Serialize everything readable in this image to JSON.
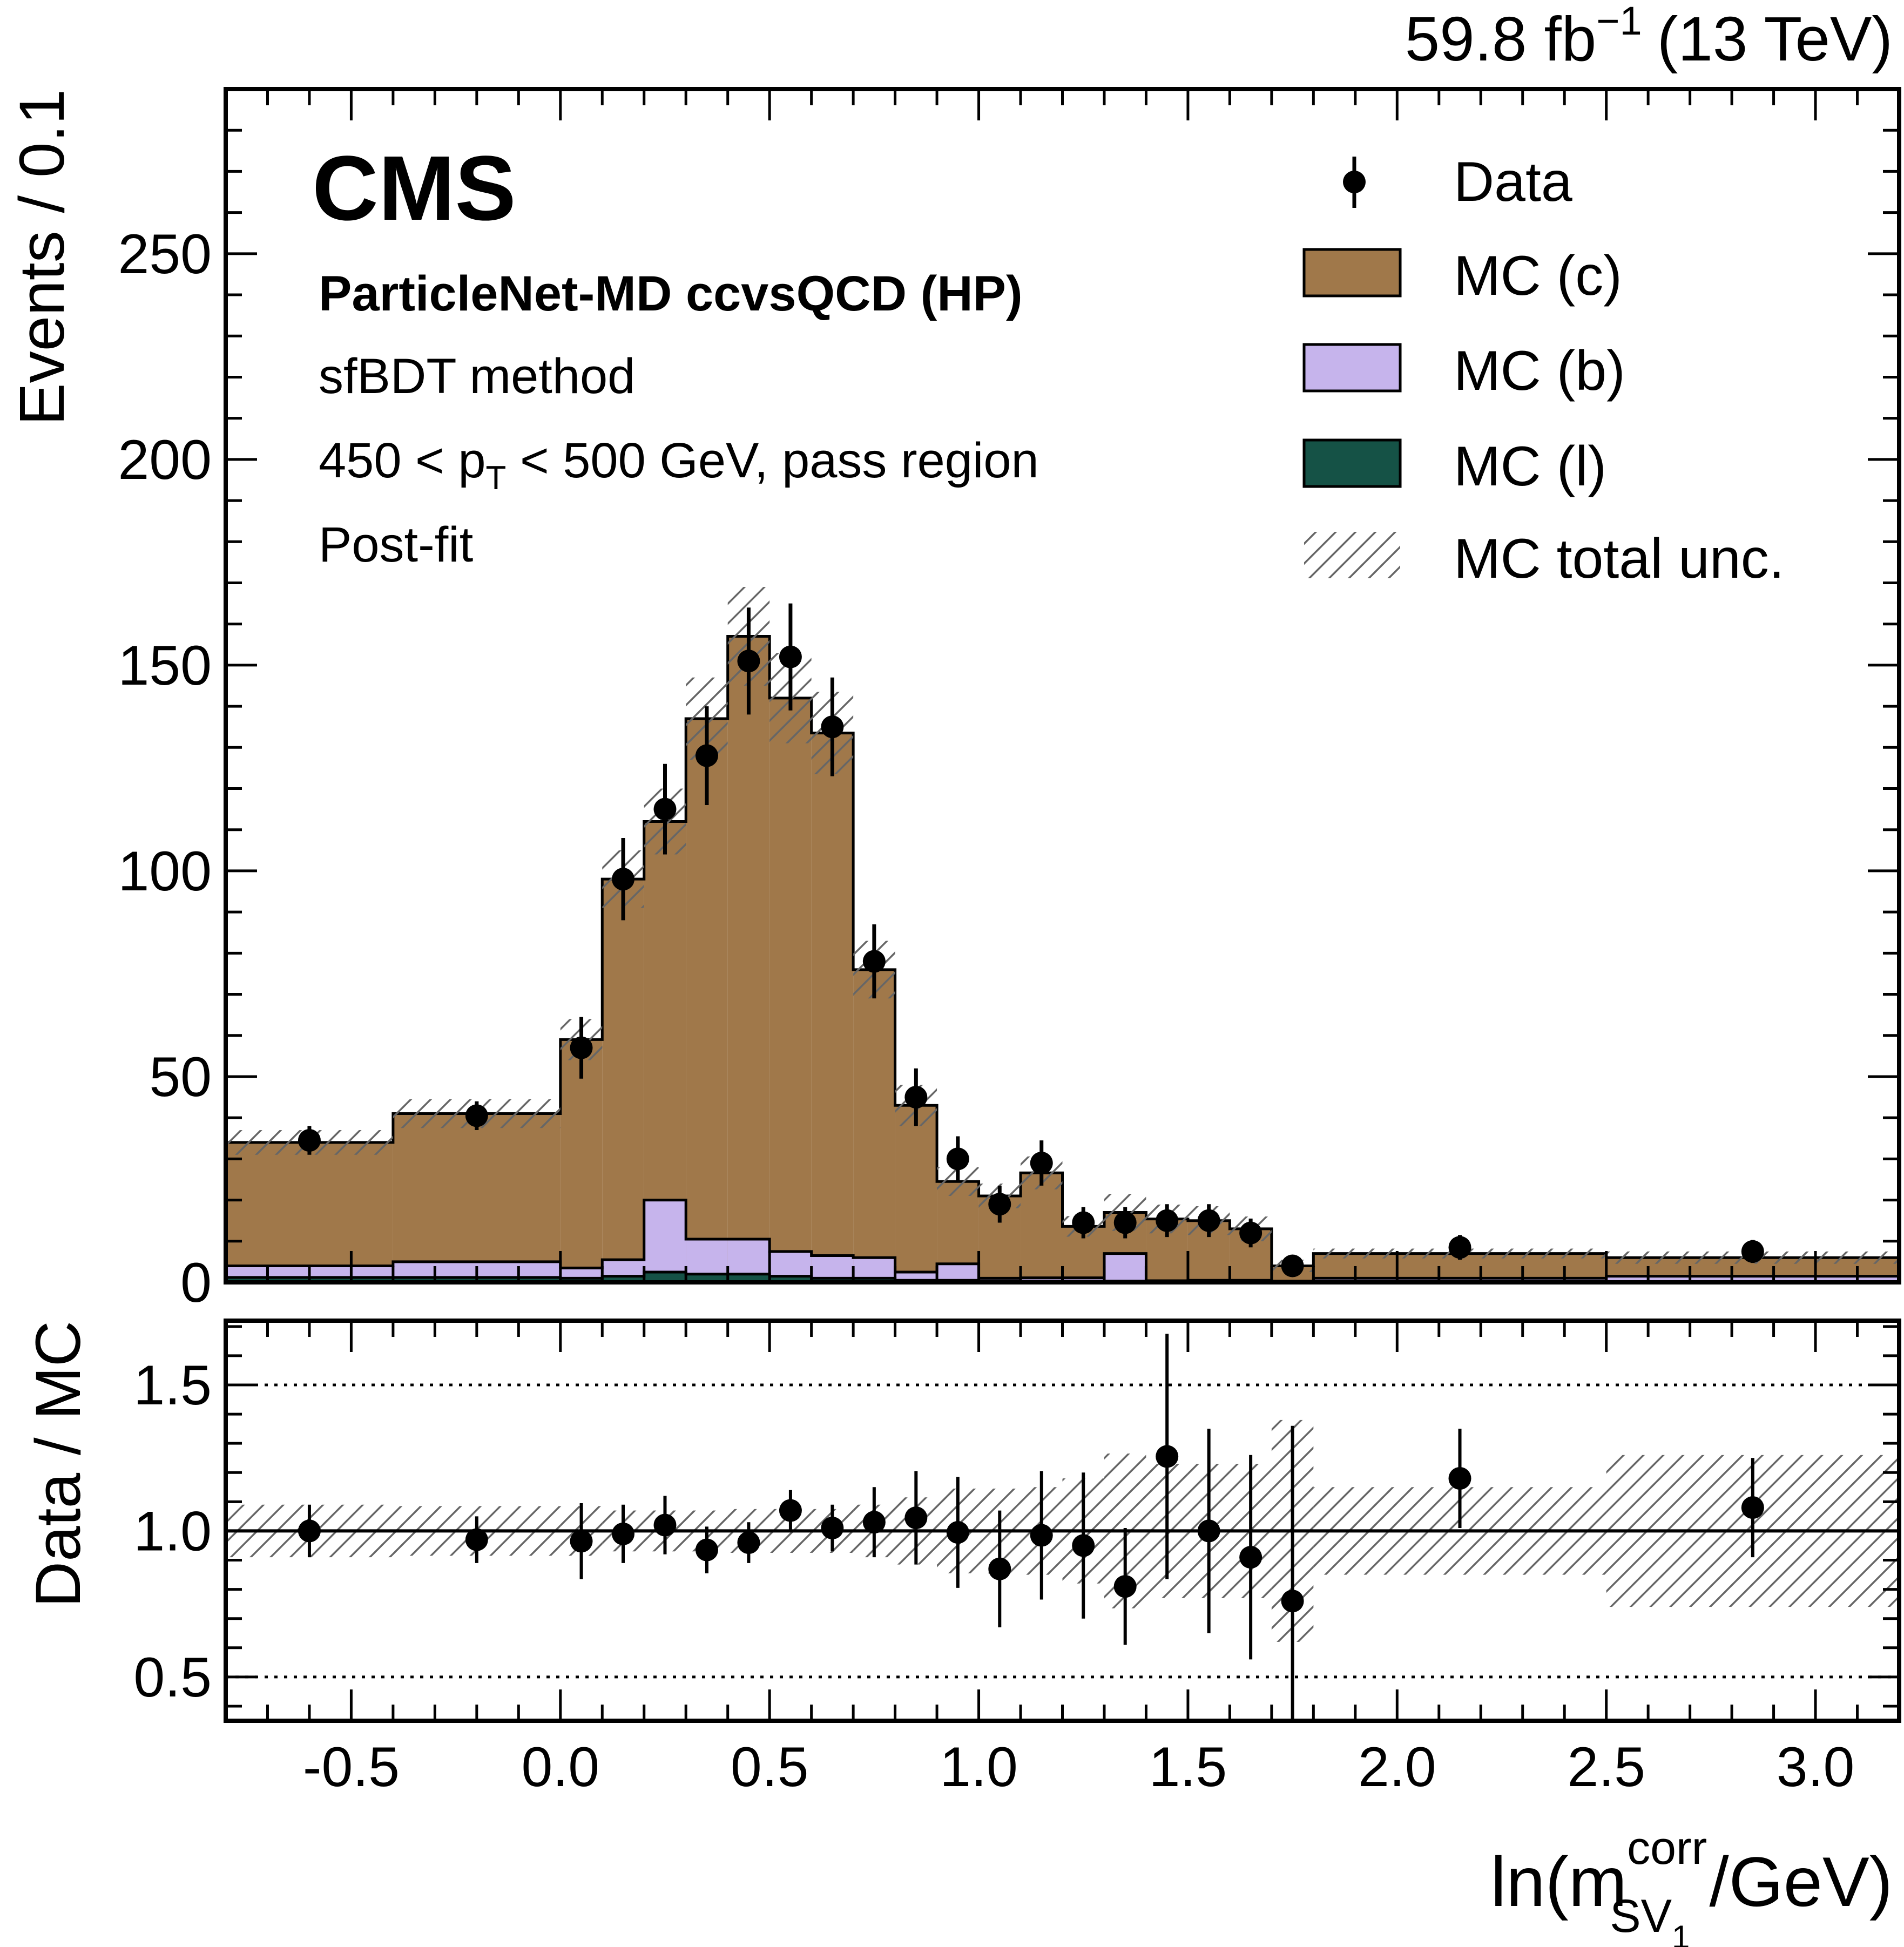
{
  "chart_data": {
    "type": "histogram-stack-with-ratio",
    "header": {
      "lumi": "59.8 fb",
      "lumi_sup": "−1",
      "energy": "(13 TeV)"
    },
    "labels": {
      "experiment": "CMS",
      "tagger": "ParticleNet-MD ccvsQCD (HP)",
      "method": "sfBDT method",
      "region_pre": "450 < p",
      "region_sub": "T",
      "region_post": " < 500 GeV, pass region",
      "fit": "Post-fit"
    },
    "xlabel": {
      "pre": "ln(m",
      "sup": "corr",
      "sub": "SV",
      "subsub": "1",
      "post": " /GeV)"
    },
    "ylabel_top": "Events / 0.1",
    "ylabel_bottom": "Data / MC",
    "xlim": [
      -0.8,
      3.2
    ],
    "ylim_top": [
      0,
      290
    ],
    "ylim_bottom": [
      0.35,
      1.72
    ],
    "xticks": [
      -0.5,
      0.0,
      0.5,
      1.0,
      1.5,
      2.0,
      2.5,
      3.0
    ],
    "xtick_labels": [
      "-0.5",
      "0.0",
      "0.5",
      "1.0",
      "1.5",
      "2.0",
      "2.5",
      "3.0"
    ],
    "yticks_top": [
      0,
      50,
      100,
      150,
      200,
      250
    ],
    "ytick_labels_top": [
      "0",
      "50",
      "100",
      "150",
      "200",
      "250"
    ],
    "yticks_bottom": [
      0.5,
      1.0,
      1.5
    ],
    "ytick_labels_bottom": [
      "0.5",
      "1.0",
      "1.5"
    ],
    "ratio_reference_lines": [
      0.5,
      1.0,
      1.5
    ],
    "legend": {
      "placement": "top-right",
      "entries": [
        "Data",
        "MC (c)",
        "MC (b)",
        "MC (l)",
        "MC total unc."
      ]
    },
    "colors": {
      "mc_c": "#a0784a",
      "mc_b": "#c6b4ec",
      "mc_l": "#155246",
      "hatch": "#666666"
    },
    "bin_edges": [
      -0.8,
      -0.4,
      0.0,
      0.1,
      0.2,
      0.3,
      0.4,
      0.5,
      0.6,
      0.7,
      0.8,
      0.9,
      1.0,
      1.1,
      1.2,
      1.3,
      1.4,
      1.5,
      1.6,
      1.7,
      1.8,
      2.5,
      3.2
    ],
    "series": [
      {
        "name": "MC (l)",
        "values": [
          1.2,
          1.2,
          1.0,
          1.5,
          2.5,
          2.0,
          2.0,
          1.5,
          1.0,
          1.0,
          0.5,
          0.5,
          0.3,
          0.3,
          0.3,
          0.3,
          0.2,
          0.2,
          0.2,
          0.1,
          0.2,
          0.2
        ]
      },
      {
        "name": "MC (b)",
        "values": [
          2.8,
          3.8,
          2.5,
          4.0,
          17.5,
          8.5,
          8.5,
          6.0,
          5.5,
          5.0,
          2.0,
          4.0,
          0.7,
          0.8,
          0.8,
          6.7,
          0.2,
          0.3,
          0.3,
          0.2,
          0.8,
          1.3
        ]
      },
      {
        "name": "MC (c)",
        "values": [
          30.0,
          36.0,
          55.5,
          92.5,
          92.0,
          126.5,
          146.5,
          134.5,
          127.0,
          70.0,
          40.5,
          20.0,
          20.0,
          25.5,
          12.5,
          10.0,
          15.0,
          14.5,
          12.5,
          3.7,
          6.0,
          4.5
        ]
      }
    ],
    "mc_total": [
      34.0,
      41.0,
      59.0,
      98.0,
      112.0,
      137.0,
      157.0,
      142.0,
      133.5,
      76.0,
      43.0,
      24.5,
      21.0,
      26.6,
      13.6,
      17.0,
      15.4,
      15.0,
      13.0,
      4.0,
      7.0,
      6.0
    ],
    "mc_unc": [
      3.0,
      3.5,
      5.0,
      7.0,
      8.0,
      10.0,
      12.0,
      11.0,
      10.0,
      7.0,
      5.0,
      3.5,
      3.0,
      4.0,
      2.5,
      4.5,
      3.5,
      3.5,
      3.0,
      1.5,
      1.2,
      1.5
    ],
    "data": {
      "x": [
        -0.6,
        -0.2,
        0.05,
        0.15,
        0.25,
        0.35,
        0.45,
        0.55,
        0.65,
        0.75,
        0.85,
        0.95,
        1.05,
        1.15,
        1.25,
        1.35,
        1.45,
        1.55,
        1.65,
        1.75,
        2.15,
        2.85
      ],
      "y": [
        34.5,
        40.5,
        57,
        98,
        115,
        128,
        151,
        152,
        135,
        78,
        45,
        30,
        19,
        29,
        14.5,
        14.5,
        15,
        15,
        12,
        4,
        8.5,
        7.5
      ],
      "yerr": [
        3.5,
        3.5,
        7.5,
        10,
        11,
        12,
        13,
        13,
        12,
        9,
        7,
        5.5,
        4.5,
        5.5,
        3.8,
        3.8,
        4,
        4,
        3.5,
        2,
        3,
        2.8
      ]
    },
    "ratio": {
      "x": [
        -0.6,
        -0.2,
        0.05,
        0.15,
        0.25,
        0.35,
        0.45,
        0.55,
        0.65,
        0.75,
        0.85,
        0.95,
        1.05,
        1.15,
        1.25,
        1.35,
        1.45,
        1.55,
        1.65,
        1.75,
        2.15,
        2.85
      ],
      "y": [
        1.0,
        0.97,
        0.965,
        0.99,
        1.02,
        0.935,
        0.96,
        1.07,
        1.01,
        1.03,
        1.045,
        0.995,
        0.87,
        0.985,
        0.95,
        0.81,
        1.255,
        1.0,
        0.91,
        0.76,
        1.18,
        1.08
      ],
      "yerr": [
        0.09,
        0.08,
        0.13,
        0.1,
        0.1,
        0.08,
        0.07,
        0.07,
        0.08,
        0.12,
        0.16,
        0.19,
        0.2,
        0.22,
        0.25,
        0.2,
        0.42,
        0.35,
        0.35,
        0.6,
        0.17,
        0.17
      ],
      "unc": [
        0.09,
        0.085,
        0.085,
        0.07,
        0.07,
        0.07,
        0.075,
        0.075,
        0.075,
        0.09,
        0.115,
        0.145,
        0.145,
        0.15,
        0.18,
        0.265,
        0.23,
        0.23,
        0.23,
        0.38,
        0.15,
        0.26
      ]
    }
  }
}
